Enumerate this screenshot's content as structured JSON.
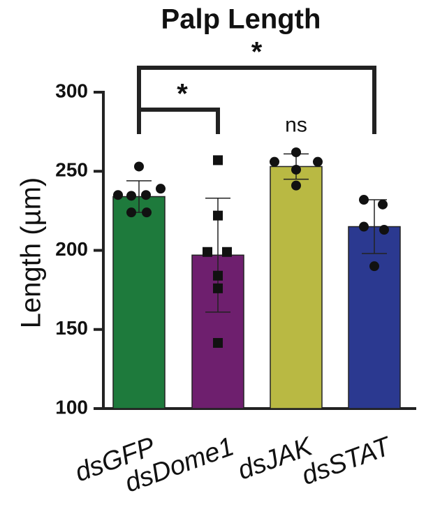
{
  "chart_data": {
    "type": "bar",
    "title": "Palp Length",
    "y_label": "Length (µm)",
    "categories": [
      "dsGFP",
      "dsDome1",
      "dsJAK",
      "dsSTAT"
    ],
    "values": [
      234,
      197,
      253,
      215
    ],
    "errors": [
      10,
      36,
      8,
      17
    ],
    "colors": [
      "#1e7a3c",
      "#6e1f6e",
      "#b9b943",
      "#2b3990"
    ],
    "markers": [
      "circle",
      "square",
      "circle",
      "circle"
    ],
    "points": [
      [
        253,
        235,
        234.5,
        235,
        239,
        224,
        224
      ],
      [
        257,
        222,
        199,
        199,
        184,
        176,
        141.5
      ],
      [
        262,
        256,
        256,
        251,
        241
      ],
      [
        232,
        229,
        215,
        213,
        190
      ]
    ],
    "ylim": [
      100,
      300
    ],
    "yticks": [
      100,
      150,
      200,
      250,
      300
    ],
    "annotations": [
      {
        "text": "*",
        "groups": [
          "dsGFP",
          "dsDome1"
        ]
      },
      {
        "text": "*",
        "groups": [
          "dsGFP",
          "dsSTAT"
        ]
      },
      {
        "text": "ns",
        "groups": [
          "dsJAK"
        ]
      }
    ]
  }
}
